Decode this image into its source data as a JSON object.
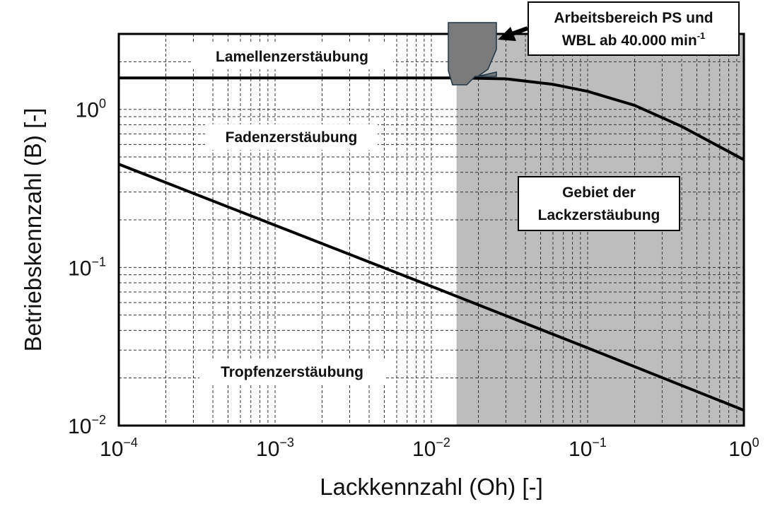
{
  "chart_data": {
    "type": "line",
    "xscale": "log",
    "yscale": "log",
    "xlim": [
      0.0001,
      1
    ],
    "ylim": [
      0.01,
      3
    ],
    "xlabel": "Lackkennzahl (Oh) [-]",
    "ylabel": "Betriebskennzahl (B) [-]",
    "grid": "dashed minor and major",
    "x_ticks": [
      {
        "base": "10",
        "exp": "−4",
        "value": 0.0001
      },
      {
        "base": "10",
        "exp": "−3",
        "value": 0.001
      },
      {
        "base": "10",
        "exp": "−2",
        "value": 0.01
      },
      {
        "base": "10",
        "exp": "−1",
        "value": 0.1
      },
      {
        "base": "10",
        "exp": "0",
        "value": 1
      }
    ],
    "y_ticks": [
      {
        "base": "10",
        "exp": "0",
        "value": 1
      },
      {
        "base": "10",
        "exp": "−1",
        "value": 0.1
      },
      {
        "base": "10",
        "exp": "−2",
        "value": 0.01
      }
    ],
    "series": [
      {
        "points": [
          [
            0.0001,
            1.58
          ],
          [
            0.015,
            1.58
          ],
          [
            0.03,
            1.56
          ],
          [
            0.06,
            1.44
          ],
          [
            0.1,
            1.3
          ],
          [
            0.2,
            1.06
          ],
          [
            0.4,
            0.78
          ],
          [
            1,
            0.48
          ]
        ],
        "color": "#000000"
      },
      {
        "points": [
          [
            0.0001,
            0.45
          ],
          [
            0.001,
            0.185
          ],
          [
            0.01,
            0.076
          ],
          [
            0.1,
            0.031
          ],
          [
            1,
            0.0125
          ]
        ],
        "color": "#000000"
      }
    ],
    "shaded_region": {
      "x_from": 0.0145,
      "x_to": 1,
      "color": "#bdbdbd"
    },
    "regions": [
      {
        "key": "lamellen",
        "text": "Lamellenzerstäubung"
      },
      {
        "key": "faden",
        "text": "Fadenzerstäubung"
      },
      {
        "key": "tropfen",
        "text": "Tropfenzerstäubung"
      }
    ],
    "annotations": {
      "gebiet_line1": "Gebiet der",
      "gebiet_line2": "Lackzerstäubung",
      "arbeit_line1": "Arbeitsbereich PS und",
      "arbeit_line2_main": "WBL ab 40.000 min",
      "arbeit_line2_sup": "-1"
    }
  }
}
